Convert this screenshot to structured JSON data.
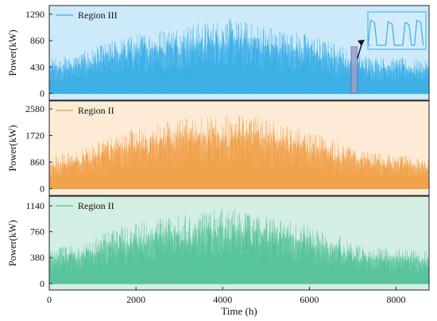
{
  "chart_data": {
    "type": "area",
    "x_axis": {
      "label": "Time (h)",
      "range": [
        0,
        8760
      ],
      "ticks": [
        0,
        2000,
        4000,
        6000,
        8000
      ],
      "tick_labels": [
        "0",
        "2000",
        "4000",
        "6000",
        "8000"
      ]
    },
    "panels": [
      {
        "legend": "Region III",
        "ylabel": "Power(kW)",
        "yticks": [
          0,
          430,
          860,
          1290
        ],
        "tick_labels": [
          "0",
          "430",
          "860",
          "1290"
        ],
        "ylim": [
          -110,
          1430
        ],
        "color": "#3aaee6",
        "background": "#cdeafb",
        "envelope": {
          "x": [
            0,
            500,
            1000,
            1500,
            2000,
            2500,
            3000,
            3500,
            4000,
            4500,
            5000,
            5500,
            6000,
            6500,
            6800,
            7000,
            7500,
            8000,
            8760
          ],
          "peak": [
            560,
            600,
            720,
            860,
            950,
            1020,
            1090,
            1130,
            1200,
            1150,
            1100,
            1000,
            950,
            820,
            760,
            640,
            600,
            560,
            530
          ],
          "trough": [
            0,
            0,
            0,
            0,
            0,
            0,
            0,
            0,
            0,
            0,
            0,
            0,
            0,
            0,
            0,
            0,
            0,
            0,
            0
          ]
        },
        "inset": {
          "highlight_x": [
            7000,
            7070
          ],
          "note": "zoomed daily profile"
        }
      },
      {
        "legend": "Region II",
        "ylabel": "Power(kW)",
        "yticks": [
          0,
          860,
          1720,
          2580
        ],
        "tick_labels": [
          "0",
          "860",
          "1720",
          "2580"
        ],
        "ylim": [
          -220,
          2840
        ],
        "color": "#f0a04a",
        "background": "#fdebd6",
        "envelope": {
          "x": [
            0,
            500,
            1000,
            1500,
            2000,
            2500,
            3000,
            3500,
            4000,
            4500,
            5000,
            5500,
            6000,
            6500,
            6800,
            7000,
            7500,
            8000,
            8760
          ],
          "peak": [
            1080,
            1150,
            1400,
            1700,
            1900,
            2050,
            2200,
            2300,
            2400,
            2300,
            2200,
            2000,
            1850,
            1550,
            1400,
            1250,
            1150,
            1080,
            1000
          ],
          "trough": [
            0,
            0,
            0,
            0,
            0,
            0,
            0,
            0,
            0,
            0,
            0,
            0,
            0,
            0,
            0,
            0,
            0,
            0,
            0
          ]
        }
      },
      {
        "legend": "Region II",
        "ylabel": "Power(kW)",
        "yticks": [
          0,
          380,
          760,
          1140
        ],
        "tick_labels": [
          "0",
          "380",
          "760",
          "1140"
        ],
        "ylim": [
          -95,
          1280
        ],
        "color": "#55c39a",
        "background": "#d3eee2",
        "envelope": {
          "x": [
            0,
            500,
            1000,
            1500,
            2000,
            2500,
            3000,
            3500,
            4000,
            4500,
            5000,
            5500,
            6000,
            6500,
            6800,
            7000,
            7500,
            8000,
            8760
          ],
          "peak": [
            500,
            540,
            650,
            780,
            850,
            930,
            980,
            1020,
            1080,
            1040,
            990,
            900,
            850,
            720,
            660,
            560,
            520,
            500,
            470
          ],
          "trough": [
            0,
            0,
            0,
            0,
            0,
            0,
            0,
            0,
            0,
            0,
            0,
            0,
            0,
            0,
            0,
            0,
            0,
            0,
            0
          ]
        }
      }
    ]
  }
}
